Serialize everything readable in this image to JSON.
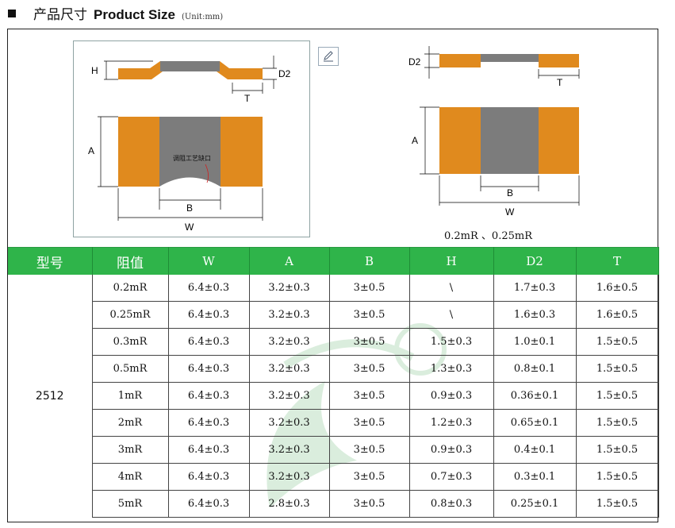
{
  "header": {
    "title_cn": "产品尺寸",
    "title_en": "Product Size",
    "unit": "(Unit:mm)"
  },
  "drawing1": {
    "label_H": "H",
    "label_D2": "D2",
    "label_T": "T",
    "label_A": "A",
    "label_B": "B",
    "label_W": "W",
    "note": "调阻工艺缺口"
  },
  "drawing2": {
    "label_D2": "D2",
    "label_T": "T",
    "label_A": "A",
    "label_B": "B",
    "label_W": "W"
  },
  "caption": "0.2mR 、0.25mR",
  "colors": {
    "orange": "#e08a1e",
    "gray": "#7c7c7c",
    "green": "#2fb44a"
  },
  "table": {
    "headers": [
      "型号",
      "阻值",
      "W",
      "A",
      "B",
      "H",
      "D2",
      "T"
    ],
    "model": "2512",
    "rows": [
      [
        "0.2mR",
        "6.4±0.3",
        "3.2±0.3",
        "3±0.5",
        "\\",
        "1.7±0.3",
        "1.6±0.5"
      ],
      [
        "0.25mR",
        "6.4±0.3",
        "3.2±0.3",
        "3±0.5",
        "\\",
        "1.6±0.3",
        "1.6±0.5"
      ],
      [
        "0.3mR",
        "6.4±0.3",
        "3.2±0.3",
        "3±0.5",
        "1.5±0.3",
        "1.0±0.1",
        "1.5±0.5"
      ],
      [
        "0.5mR",
        "6.4±0.3",
        "3.2±0.3",
        "3±0.5",
        "1.3±0.3",
        "0.8±0.1",
        "1.5±0.5"
      ],
      [
        "1mR",
        "6.4±0.3",
        "3.2±0.3",
        "3±0.5",
        "0.9±0.3",
        "0.36±0.1",
        "1.5±0.5"
      ],
      [
        "2mR",
        "6.4±0.3",
        "3.2±0.3",
        "3±0.5",
        "1.2±0.3",
        "0.65±0.1",
        "1.5±0.5"
      ],
      [
        "3mR",
        "6.4±0.3",
        "3.2±0.3",
        "3±0.5",
        "0.9±0.3",
        "0.4±0.1",
        "1.5±0.5"
      ],
      [
        "4mR",
        "6.4±0.3",
        "3.2±0.3",
        "3±0.5",
        "0.7±0.3",
        "0.3±0.1",
        "1.5±0.5"
      ],
      [
        "5mR",
        "6.4±0.3",
        "2.8±0.3",
        "3±0.5",
        "0.8±0.3",
        "0.25±0.1",
        "1.5±0.5"
      ]
    ]
  }
}
